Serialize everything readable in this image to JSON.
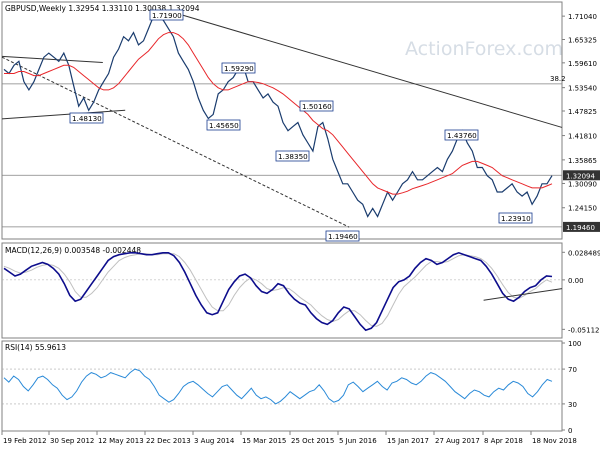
{
  "chart_data": {
    "type": "line",
    "x_ticks": [
      "19 Feb 2012",
      "30 Sep 2012",
      "12 May 2013",
      "22 Dec 2013",
      "3 Aug 2014",
      "15 Mar 2015",
      "25 Oct 2015",
      "5 Jun 2016",
      "15 Jan 2017",
      "27 Aug 2017",
      "8 Apr 2018",
      "18 Nov 2018"
    ],
    "watermark": "ActionForex.com",
    "price_panel": {
      "header": "GBPUSD,Weekly  1.32954 1.33110 1.30038 1.32094",
      "ylim": [
        1.165,
        1.745
      ],
      "y_ticks": [
        "1.71040",
        "1.65325",
        "1.59610",
        "1.53540",
        "1.47825",
        "1.41810",
        "1.35865",
        "1.30090",
        "1.24150"
      ],
      "last_price": "1.32094",
      "low_label": "1.19460",
      "fib_label": "38.2",
      "price_labels": [
        "1.71900",
        "1.48130",
        "1.59290",
        "1.45650",
        "1.50160",
        "1.38350",
        "1.43760",
        "1.23910",
        "1.19460"
      ],
      "price": [
        1.58,
        1.57,
        1.59,
        1.6,
        1.55,
        1.53,
        1.55,
        1.58,
        1.61,
        1.62,
        1.61,
        1.6,
        1.62,
        1.59,
        1.54,
        1.49,
        1.51,
        1.48,
        1.5,
        1.53,
        1.55,
        1.57,
        1.61,
        1.63,
        1.66,
        1.65,
        1.67,
        1.64,
        1.65,
        1.68,
        1.71,
        1.71,
        1.7,
        1.68,
        1.66,
        1.62,
        1.6,
        1.58,
        1.55,
        1.51,
        1.48,
        1.46,
        1.47,
        1.52,
        1.53,
        1.55,
        1.56,
        1.58,
        1.59,
        1.55,
        1.55,
        1.53,
        1.51,
        1.52,
        1.5,
        1.49,
        1.45,
        1.43,
        1.44,
        1.45,
        1.42,
        1.4,
        1.38,
        1.44,
        1.45,
        1.41,
        1.36,
        1.33,
        1.3,
        1.3,
        1.28,
        1.26,
        1.25,
        1.22,
        1.24,
        1.22,
        1.25,
        1.28,
        1.26,
        1.28,
        1.3,
        1.31,
        1.33,
        1.31,
        1.31,
        1.32,
        1.33,
        1.34,
        1.33,
        1.36,
        1.38,
        1.41,
        1.43,
        1.4,
        1.38,
        1.34,
        1.34,
        1.32,
        1.31,
        1.28,
        1.28,
        1.29,
        1.3,
        1.28,
        1.27,
        1.28,
        1.25,
        1.27,
        1.3,
        1.3,
        1.32
      ],
      "ma": [
        1.57,
        1.57,
        1.57,
        1.575,
        1.575,
        1.57,
        1.565,
        1.565,
        1.57,
        1.575,
        1.58,
        1.585,
        1.59,
        1.59,
        1.585,
        1.575,
        1.565,
        1.555,
        1.545,
        1.535,
        1.53,
        1.53,
        1.535,
        1.545,
        1.56,
        1.575,
        1.59,
        1.605,
        1.615,
        1.625,
        1.64,
        1.655,
        1.665,
        1.67,
        1.67,
        1.665,
        1.655,
        1.64,
        1.62,
        1.6,
        1.58,
        1.56,
        1.545,
        1.535,
        1.53,
        1.53,
        1.535,
        1.54,
        1.545,
        1.55,
        1.55,
        1.548,
        1.545,
        1.54,
        1.535,
        1.528,
        1.52,
        1.51,
        1.5,
        1.49,
        1.48,
        1.47,
        1.455,
        1.445,
        1.435,
        1.43,
        1.42,
        1.405,
        1.39,
        1.375,
        1.36,
        1.345,
        1.33,
        1.315,
        1.3,
        1.29,
        1.285,
        1.28,
        1.275,
        1.275,
        1.278,
        1.282,
        1.288,
        1.292,
        1.296,
        1.3,
        1.305,
        1.31,
        1.315,
        1.32,
        1.325,
        1.335,
        1.345,
        1.35,
        1.355,
        1.355,
        1.35,
        1.345,
        1.34,
        1.33,
        1.32,
        1.315,
        1.31,
        1.305,
        1.3,
        1.295,
        1.29,
        1.29,
        1.29,
        1.295,
        1.3
      ],
      "trendlines": [
        {
          "x0": 0.0,
          "y0": 1.612,
          "x1": 0.18,
          "y1": 1.597
        },
        {
          "x0": 0.0,
          "y0": 1.459,
          "x1": 0.22,
          "y1": 1.48
        },
        {
          "x0": 0.0,
          "y0": 1.61,
          "x1": 0.62,
          "y1": 1.194
        },
        {
          "x0": 0.3,
          "y0": 1.722,
          "x1": 1.0,
          "y1": 1.438
        }
      ],
      "hlines": [
        1.5447,
        1.32094,
        1.1946
      ]
    },
    "macd_panel": {
      "header": "MACD(12,26,9) 0.003548 -0.002448",
      "ylim": [
        -0.058,
        0.035
      ],
      "y_ticks": [
        "0.028489",
        "0.00",
        "-0.051125"
      ],
      "macd": [
        0.012,
        0.008,
        0.004,
        0.006,
        0.01,
        0.014,
        0.016,
        0.018,
        0.016,
        0.012,
        0.006,
        -0.004,
        -0.016,
        -0.022,
        -0.02,
        -0.012,
        -0.004,
        0.004,
        0.012,
        0.02,
        0.024,
        0.026,
        0.027,
        0.028,
        0.028,
        0.027,
        0.026,
        0.026,
        0.027,
        0.028,
        0.028,
        0.025,
        0.018,
        0.008,
        -0.004,
        -0.016,
        -0.026,
        -0.034,
        -0.036,
        -0.034,
        -0.022,
        -0.01,
        -0.002,
        0.004,
        0.006,
        0.002,
        -0.006,
        -0.012,
        -0.014,
        -0.01,
        -0.004,
        -0.006,
        -0.014,
        -0.02,
        -0.024,
        -0.026,
        -0.034,
        -0.04,
        -0.044,
        -0.046,
        -0.042,
        -0.034,
        -0.028,
        -0.03,
        -0.038,
        -0.046,
        -0.052,
        -0.05,
        -0.044,
        -0.032,
        -0.02,
        -0.008,
        -0.002,
        0.0,
        0.004,
        0.012,
        0.018,
        0.022,
        0.02,
        0.016,
        0.018,
        0.022,
        0.026,
        0.028,
        0.026,
        0.024,
        0.022,
        0.02,
        0.014,
        0.006,
        -0.004,
        -0.014,
        -0.02,
        -0.022,
        -0.018,
        -0.012,
        -0.008,
        -0.006,
        0.0,
        0.004,
        0.0035
      ],
      "signal": [
        0.014,
        0.012,
        0.009,
        0.007,
        0.008,
        0.01,
        0.013,
        0.015,
        0.016,
        0.015,
        0.012,
        0.006,
        -0.002,
        -0.012,
        -0.018,
        -0.018,
        -0.014,
        -0.008,
        0.0,
        0.008,
        0.014,
        0.02,
        0.023,
        0.025,
        0.026,
        0.027,
        0.027,
        0.026,
        0.026,
        0.027,
        0.027,
        0.027,
        0.024,
        0.018,
        0.01,
        0.0,
        -0.01,
        -0.02,
        -0.028,
        -0.032,
        -0.032,
        -0.026,
        -0.016,
        -0.008,
        -0.002,
        0.002,
        0.0,
        -0.004,
        -0.009,
        -0.011,
        -0.01,
        -0.008,
        -0.009,
        -0.013,
        -0.018,
        -0.022,
        -0.026,
        -0.032,
        -0.037,
        -0.041,
        -0.043,
        -0.041,
        -0.036,
        -0.032,
        -0.032,
        -0.036,
        -0.042,
        -0.047,
        -0.048,
        -0.045,
        -0.037,
        -0.026,
        -0.015,
        -0.007,
        -0.002,
        0.003,
        0.009,
        0.015,
        0.019,
        0.019,
        0.018,
        0.019,
        0.022,
        0.025,
        0.026,
        0.025,
        0.024,
        0.022,
        0.018,
        0.012,
        0.004,
        -0.005,
        -0.013,
        -0.018,
        -0.019,
        -0.016,
        -0.012,
        -0.009,
        -0.004,
        0.0,
        -0.0024
      ],
      "trendline": {
        "x0": 0.86,
        "y0": -0.021,
        "x1": 1.0,
        "y1": -0.009
      }
    },
    "rsi_panel": {
      "header": "RSI(14) 55.9613",
      "ylim": [
        0,
        100
      ],
      "y_ticks": [
        "100",
        "70",
        "30",
        "0"
      ],
      "rsi": [
        60,
        55,
        62,
        58,
        50,
        45,
        52,
        60,
        62,
        58,
        52,
        48,
        40,
        35,
        38,
        45,
        55,
        62,
        66,
        64,
        60,
        62,
        66,
        64,
        62,
        60,
        66,
        70,
        68,
        62,
        58,
        50,
        40,
        36,
        32,
        35,
        42,
        50,
        54,
        56,
        52,
        47,
        42,
        38,
        44,
        50,
        52,
        46,
        40,
        36,
        42,
        48,
        40,
        36,
        38,
        35,
        30,
        33,
        38,
        44,
        40,
        36,
        40,
        44,
        46,
        52,
        45,
        36,
        32,
        34,
        40,
        52,
        55,
        50,
        44,
        48,
        52,
        56,
        50,
        46,
        54,
        56,
        60,
        58,
        54,
        52,
        56,
        62,
        66,
        64,
        60,
        56,
        50,
        44,
        40,
        36,
        42,
        46,
        44,
        40,
        38,
        44,
        48,
        46,
        52,
        56,
        54,
        50,
        42,
        38,
        44,
        52,
        58,
        56
      ],
      "levels": [
        70,
        30
      ]
    }
  }
}
